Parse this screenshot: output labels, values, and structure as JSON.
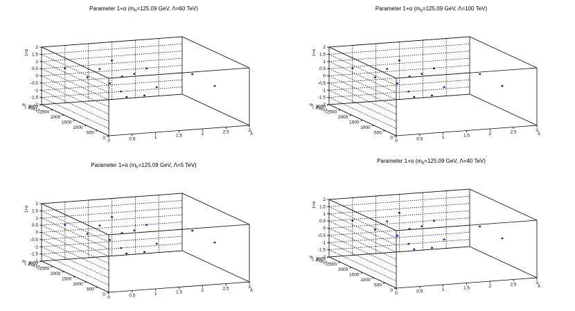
{
  "chart_data": [
    {
      "type": "scatter3d",
      "title_pre": "Parameter 1+α (m",
      "title_sub": "h",
      "title_post": "=125.09 GeV, Λ=60 TeV)",
      "xlabel": "λ",
      "ylabel": "m_L [GeV]",
      "zlabel": "1+α",
      "xlim": [
        0,
        3
      ],
      "ylim": [
        0,
        3000
      ],
      "zlim": [
        -2,
        2
      ],
      "x_ticks": [
        "0",
        "0.5",
        "1",
        "1.5",
        "2",
        "2.5",
        "3"
      ],
      "y_ticks": [
        "0",
        "500",
        "1000",
        "1500",
        "2000",
        "2500",
        "3000"
      ],
      "z_ticks": [
        "-2",
        "-1.5",
        "-1",
        "-0.5",
        "0",
        "0.5",
        "1",
        "1.5",
        "2"
      ],
      "marker_color": "#1f1fa8",
      "points": [
        {
          "x": 0.5,
          "y": 3000,
          "z": 0.4
        },
        {
          "x": 0.5,
          "y": 2000,
          "z": 0.5
        },
        {
          "x": 0.5,
          "y": 1000,
          "z": 0.8
        },
        {
          "x": 0.5,
          "y": 500,
          "z": 0.6
        },
        {
          "x": 0.5,
          "y": 250,
          "z": 0.4
        },
        {
          "x": 1.0,
          "y": 2500,
          "z": 0.6
        },
        {
          "x": 1.0,
          "y": 1500,
          "z": 0.8
        },
        {
          "x": 1.0,
          "y": 500,
          "z": 0.2
        },
        {
          "x": 1.5,
          "y": 3000,
          "z": 0.7
        },
        {
          "x": 1.5,
          "y": 2000,
          "z": 0.5
        },
        {
          "x": 1.5,
          "y": 1000,
          "z": 0.3
        },
        {
          "x": 2.0,
          "y": 2500,
          "z": 0.4
        },
        {
          "x": 2.5,
          "y": 1500,
          "z": 0.6
        },
        {
          "x": 2.5,
          "y": 500,
          "z": 0.5
        }
      ]
    },
    {
      "type": "scatter3d",
      "title_pre": "Parameter 1+α (m",
      "title_sub": "h",
      "title_post": "=125.09 GeV, Λ=100 TeV)",
      "xlabel": "λ",
      "ylabel": "m_L [GeV]",
      "zlabel": "1+α",
      "xlim": [
        0,
        3
      ],
      "ylim": [
        0,
        3000
      ],
      "zlim": [
        -2,
        2
      ],
      "x_ticks": [
        "0",
        "0.5",
        "1",
        "1.5",
        "2",
        "2.5",
        "3"
      ],
      "y_ticks": [
        "0",
        "500",
        "1000",
        "1500",
        "2000",
        "2500",
        "3000"
      ],
      "z_ticks": [
        "-2",
        "-1.5",
        "-1",
        "-0.5",
        "0",
        "0.5",
        "1",
        "1.5",
        "2"
      ],
      "marker_color": "#1f1fa8",
      "points": [
        {
          "x": 0.5,
          "y": 3000,
          "z": 0.4
        },
        {
          "x": 0.5,
          "y": 2000,
          "z": 0.5
        },
        {
          "x": 0.5,
          "y": 1000,
          "z": 0.8
        },
        {
          "x": 0.5,
          "y": 500,
          "z": 0.6
        },
        {
          "x": 0.5,
          "y": 250,
          "z": 0.4
        },
        {
          "x": 1.0,
          "y": 2500,
          "z": 0.6
        },
        {
          "x": 1.0,
          "y": 1500,
          "z": 0.8
        },
        {
          "x": 1.0,
          "y": 500,
          "z": 0.2
        },
        {
          "x": 1.5,
          "y": 3000,
          "z": 0.7
        },
        {
          "x": 1.5,
          "y": 2000,
          "z": 0.5
        },
        {
          "x": 1.5,
          "y": 1000,
          "z": 0.3
        },
        {
          "x": 2.0,
          "y": 2500,
          "z": 0.4
        },
        {
          "x": 2.5,
          "y": 1500,
          "z": 0.6
        },
        {
          "x": 2.5,
          "y": 500,
          "z": 0.5
        }
      ]
    },
    {
      "type": "scatter3d",
      "title_pre": "Parameter 1+α (m",
      "title_sub": "h",
      "title_post": "=125.09 GeV, Λ=5 TeV)",
      "xlabel": "λ",
      "ylabel": "m_L [GeV]",
      "zlabel": "1+α",
      "xlim": [
        0,
        3
      ],
      "ylim": [
        0,
        3000
      ],
      "zlim": [
        -2,
        2
      ],
      "x_ticks": [
        "0",
        "0.5",
        "1",
        "1.5",
        "2",
        "2.5",
        "3"
      ],
      "y_ticks": [
        "0",
        "500",
        "1000",
        "1500",
        "2000",
        "2500",
        "3000"
      ],
      "z_ticks": [
        "-2",
        "-1.5",
        "-1",
        "-0.5",
        "0",
        "0.5",
        "1",
        "1.5",
        "2"
      ],
      "marker_color": "#1f1fa8",
      "points": [
        {
          "x": 0.5,
          "y": 3000,
          "z": 0.4
        },
        {
          "x": 0.5,
          "y": 2000,
          "z": 0.5
        },
        {
          "x": 0.5,
          "y": 1000,
          "z": 0.8
        },
        {
          "x": 0.5,
          "y": 500,
          "z": 0.6
        },
        {
          "x": 0.5,
          "y": 250,
          "z": 0.4
        },
        {
          "x": 1.0,
          "y": 2500,
          "z": 0.6
        },
        {
          "x": 1.0,
          "y": 1500,
          "z": 0.8
        },
        {
          "x": 1.0,
          "y": 500,
          "z": 0.2
        },
        {
          "x": 1.5,
          "y": 3000,
          "z": 0.7
        },
        {
          "x": 1.5,
          "y": 2000,
          "z": 0.5
        },
        {
          "x": 1.5,
          "y": 1000,
          "z": 0.3
        },
        {
          "x": 2.0,
          "y": 2500,
          "z": 0.4
        },
        {
          "x": 2.5,
          "y": 1500,
          "z": 0.6
        },
        {
          "x": 2.5,
          "y": 500,
          "z": 0.5
        }
      ]
    },
    {
      "type": "scatter3d",
      "title_pre": "Parameter 1+α (m",
      "title_sub": "h",
      "title_post": "=125.09 GeV, Λ=40 TeV)",
      "xlabel": "λ",
      "ylabel": "m_L [GeV]",
      "zlabel": "1+α",
      "xlim": [
        0,
        3
      ],
      "ylim": [
        0,
        3000
      ],
      "zlim": [
        -2,
        2
      ],
      "x_ticks": [
        "0",
        "0.5",
        "1",
        "1.5",
        "2",
        "2.5",
        "3"
      ],
      "y_ticks": [
        "0",
        "500",
        "1000",
        "1500",
        "2000",
        "2500",
        "3000"
      ],
      "z_ticks": [
        "-2",
        "-1.5",
        "-1",
        "-0.5",
        "0",
        "0.5",
        "1",
        "1.5",
        "2"
      ],
      "marker_color": "#1f1fa8",
      "points": [
        {
          "x": 0.5,
          "y": 3000,
          "z": 0.4
        },
        {
          "x": 0.5,
          "y": 2000,
          "z": 0.5
        },
        {
          "x": 0.5,
          "y": 1000,
          "z": 0.8
        },
        {
          "x": 0.5,
          "y": 500,
          "z": 0.6
        },
        {
          "x": 0.5,
          "y": 250,
          "z": 0.4
        },
        {
          "x": 1.0,
          "y": 2500,
          "z": 0.6
        },
        {
          "x": 1.0,
          "y": 1500,
          "z": 0.8
        },
        {
          "x": 1.0,
          "y": 500,
          "z": 0.2
        },
        {
          "x": 1.5,
          "y": 3000,
          "z": 0.7
        },
        {
          "x": 1.5,
          "y": 2000,
          "z": 0.5
        },
        {
          "x": 1.5,
          "y": 1000,
          "z": 0.3
        },
        {
          "x": 2.0,
          "y": 2500,
          "z": 0.4
        },
        {
          "x": 2.5,
          "y": 1500,
          "z": 0.6
        },
        {
          "x": 2.5,
          "y": 500,
          "z": 0.5
        }
      ]
    }
  ]
}
